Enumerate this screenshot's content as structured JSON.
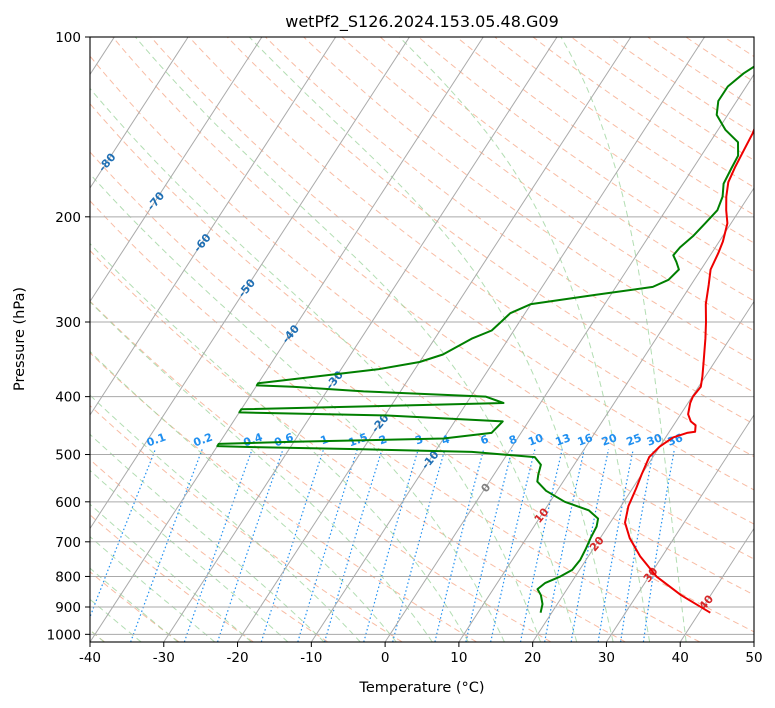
{
  "chart_data": {
    "type": "skew-t",
    "title": "wetPf2_S126.2024.153.05.48.G09",
    "xlabel": "Temperature (°C)",
    "ylabel": "Pressure (hPa)",
    "xlim": [
      -40,
      50
    ],
    "ylim": [
      1030,
      100
    ],
    "y_scale": "log",
    "grid": true,
    "x_ticks": [
      -40,
      -30,
      -20,
      -10,
      0,
      10,
      20,
      30,
      40,
      50
    ],
    "y_ticks": [
      100,
      200,
      300,
      400,
      500,
      600,
      700,
      800,
      900,
      1000
    ],
    "isotherms": [
      -100,
      -90,
      -80,
      -70,
      -60,
      -50,
      -40,
      -30,
      -20,
      -10,
      0,
      10,
      20,
      30,
      40
    ],
    "mixing_ratio_labels": [
      "0.1",
      "0.2",
      "0.4",
      "0.6",
      "1",
      "1.5",
      "2",
      "3",
      "4",
      "6",
      "8",
      "10",
      "13",
      "16",
      "20",
      "25",
      "30",
      "36"
    ],
    "colors": {
      "temperature": "#ee0000",
      "dewpoint": "#007f00",
      "isotherm": "#aaaaaa",
      "dry_adiabat": "#f6a585",
      "moist_adiabat": "#9fd49f",
      "mixing_ratio": "#1f8ff0",
      "isotherm_label_cold": "#1f6fb4",
      "isotherm_label_warm": "#d62728",
      "isotherm_label_zero": "#808080"
    },
    "series": [
      {
        "name": "Temperature",
        "points": [
          [
            41.5,
            920
          ],
          [
            36,
            860
          ],
          [
            31,
            800
          ],
          [
            27,
            740
          ],
          [
            24,
            690
          ],
          [
            22,
            650
          ],
          [
            21,
            610
          ],
          [
            20.5,
            570
          ],
          [
            20,
            540
          ],
          [
            19.5,
            505
          ],
          [
            20,
            485
          ],
          [
            21,
            468
          ],
          [
            22.5,
            460
          ],
          [
            23.5,
            458
          ],
          [
            23,
            447
          ],
          [
            22,
            440
          ],
          [
            21,
            428
          ],
          [
            20.3,
            410
          ],
          [
            20.1,
            400
          ],
          [
            20.3,
            385
          ],
          [
            19.6,
            370
          ],
          [
            18.5,
            350
          ],
          [
            16.7,
            320
          ],
          [
            15.3,
            300
          ],
          [
            13.7,
            280
          ],
          [
            12.4,
            260
          ],
          [
            11.3,
            245
          ],
          [
            10.9,
            230
          ],
          [
            10.5,
            220
          ],
          [
            9.5,
            205
          ],
          [
            8.2,
            195
          ],
          [
            7,
            185
          ],
          [
            6,
            175
          ],
          [
            5.6,
            165
          ],
          [
            5.3,
            155
          ],
          [
            5,
            145
          ],
          [
            4.4,
            135
          ],
          [
            3.8,
            126
          ],
          [
            3.1,
            118
          ],
          [
            2.5,
            112
          ],
          [
            2,
            106
          ],
          [
            1.5,
            100
          ]
        ]
      },
      {
        "name": "Dewpoint",
        "points": [
          [
            18.5,
            920
          ],
          [
            18,
            890
          ],
          [
            17,
            860
          ],
          [
            16,
            840
          ],
          [
            16.5,
            820
          ],
          [
            18,
            800
          ],
          [
            19,
            780
          ],
          [
            19.2,
            750
          ],
          [
            19,
            720
          ],
          [
            18.7,
            690
          ],
          [
            18.5,
            660
          ],
          [
            18,
            640
          ],
          [
            16,
            620
          ],
          [
            12,
            600
          ],
          [
            8.5,
            575
          ],
          [
            6.5,
            555
          ],
          [
            6,
            540
          ],
          [
            5.5,
            520
          ],
          [
            4,
            505
          ],
          [
            -5,
            495
          ],
          [
            -20,
            490
          ],
          [
            -35,
            486
          ],
          [
            -40,
            484
          ],
          [
            -40,
            480
          ],
          [
            -30,
            476
          ],
          [
            -10,
            470
          ],
          [
            -4,
            460
          ],
          [
            -3.5,
            440
          ],
          [
            -20,
            430
          ],
          [
            -40,
            425
          ],
          [
            -40,
            420
          ],
          [
            -15,
            413
          ],
          [
            -5,
            410
          ],
          [
            -8,
            400
          ],
          [
            -25,
            392
          ],
          [
            -35,
            385
          ],
          [
            -40,
            383
          ],
          [
            -40,
            380
          ],
          [
            -25,
            360
          ],
          [
            -20,
            350
          ],
          [
            -17.5,
            340
          ],
          [
            -15,
            320
          ],
          [
            -13,
            310
          ],
          [
            -12.5,
            300
          ],
          [
            -12,
            290
          ],
          [
            -10,
            280
          ],
          [
            -2,
            270
          ],
          [
            5,
            262
          ],
          [
            6.5,
            255
          ],
          [
            7,
            245
          ],
          [
            6,
            238
          ],
          [
            5,
            232
          ],
          [
            5.2,
            225
          ],
          [
            6,
            215
          ],
          [
            6.5,
            205
          ],
          [
            7,
            195
          ],
          [
            6.5,
            185
          ],
          [
            5.5,
            176
          ],
          [
            5.2,
            166
          ],
          [
            5,
            158
          ],
          [
            3.8,
            150
          ],
          [
            1,
            143
          ],
          [
            -1.5,
            135
          ],
          [
            -2.5,
            128
          ],
          [
            -2.5,
            121
          ],
          [
            -1.5,
            115
          ],
          [
            0.5,
            108
          ],
          [
            1.5,
            104
          ],
          [
            1.5,
            100
          ]
        ]
      }
    ]
  }
}
